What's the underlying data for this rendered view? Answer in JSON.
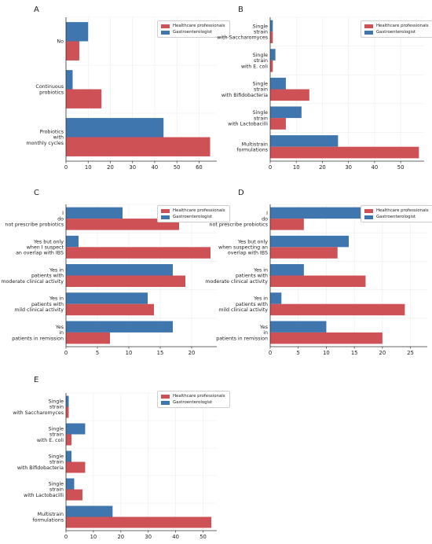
{
  "legend_labels": [
    "Healthcare professionals",
    "Gastroenterologist"
  ],
  "colors": {
    "healthcare": "#cd5155",
    "gastro": "#3f76ad",
    "grid": "#ececec",
    "axis": "#333333"
  },
  "chart_data": [
    {
      "panel": "A",
      "type": "bar",
      "orientation": "horizontal",
      "categories": [
        "No",
        "Continuous probiotics",
        "Probiotics with monthly cycles"
      ],
      "category_labels": [
        [
          "No"
        ],
        [
          "Continuous",
          "probiotics"
        ],
        [
          "Probiotics",
          "with",
          "monthly cycles"
        ]
      ],
      "series": [
        {
          "name": "Healthcare professionals",
          "values": [
            6,
            16,
            65
          ]
        },
        {
          "name": "Gastroenterologist",
          "values": [
            10,
            3,
            44
          ]
        }
      ],
      "xlim": [
        0,
        68
      ],
      "xticks": [
        0,
        10,
        20,
        30,
        40,
        50,
        60
      ],
      "grid": true,
      "legend_position": "top-right"
    },
    {
      "panel": "B",
      "type": "bar",
      "orientation": "horizontal",
      "categories": [
        "Single strain with Saccharomyces",
        "Single strain with E. coli",
        "Single strain with Bifidobacteria",
        "Single strain with Lactobacilli",
        "Multistrain formulations"
      ],
      "category_labels": [
        [
          "Single",
          "strain",
          "with Saccharomyces"
        ],
        [
          "Single",
          "strain",
          "with E. coli"
        ],
        [
          "Single",
          "strain",
          "with Bifidobacteria"
        ],
        [
          "Single",
          "strain",
          "with Lactobacilli"
        ],
        [
          "Multistrain",
          "formulations"
        ]
      ],
      "series": [
        {
          "name": "Healthcare professionals",
          "values": [
            1,
            1,
            15,
            6,
            57
          ]
        },
        {
          "name": "Gastroenterologist",
          "values": [
            1,
            2,
            6,
            12,
            26
          ]
        }
      ],
      "xlim": [
        0,
        59
      ],
      "xticks": [
        0,
        10,
        20,
        30,
        40,
        50
      ],
      "grid": true,
      "legend_position": "top-right"
    },
    {
      "panel": "C",
      "type": "bar",
      "orientation": "horizontal",
      "categories": [
        "I do not prescribe probiotics",
        "Yes but only when I suspect an overlap with IBS",
        "Yes in patients with moderate clinical activity",
        "Yes in patients with mild clinical activity",
        "Yes in patients in remission"
      ],
      "category_labels": [
        [
          "I",
          "do",
          "not prescribe probiotics"
        ],
        [
          "Yes but only",
          "when I suspect",
          "an overlap with IBS"
        ],
        [
          "Yes in",
          "patients with",
          "moderate clinical activity"
        ],
        [
          "Yes in",
          "patients with",
          "mild clinical activity"
        ],
        [
          "Yes",
          "in",
          "patients in remission"
        ]
      ],
      "series": [
        {
          "name": "Healthcare professionals",
          "values": [
            18,
            23,
            19,
            14,
            7
          ]
        },
        {
          "name": "Gastroenterologist",
          "values": [
            9,
            2,
            17,
            13,
            17
          ]
        }
      ],
      "xlim": [
        0,
        24
      ],
      "xticks": [
        0,
        5,
        10,
        15,
        20
      ],
      "grid": true,
      "legend_position": "top-right"
    },
    {
      "panel": "D",
      "type": "bar",
      "orientation": "horizontal",
      "categories": [
        "I do not prescribe probiotics",
        "Yes but only when suspecting an overlap with IBS",
        "Yes in patients with moderate clinical activity",
        "Yes in patients with mild clinical activity",
        "Yes in patients in remission"
      ],
      "category_labels": [
        [
          "I",
          "do",
          "not prescribe probiotics"
        ],
        [
          "Yes but only",
          "when suspecting an",
          "overlap with IBS"
        ],
        [
          "Yes in",
          "patients with",
          "moderate clinical activity"
        ],
        [
          "Yes in",
          "patients with",
          "mild clinical activity"
        ],
        [
          "Yes",
          "in",
          "patients in remission"
        ]
      ],
      "series": [
        {
          "name": "Healthcare professionals",
          "values": [
            6,
            12,
            17,
            24,
            20
          ]
        },
        {
          "name": "Gastroenterologist",
          "values": [
            27,
            14,
            6,
            2,
            10
          ]
        }
      ],
      "xlim": [
        0,
        28
      ],
      "xticks": [
        0,
        5,
        10,
        15,
        20,
        25
      ],
      "grid": true,
      "legend_position": "top-right"
    },
    {
      "panel": "E",
      "type": "bar",
      "orientation": "horizontal",
      "categories": [
        "Single strain with Saccharomyces",
        "Single strain with E. coli",
        "Single strain with Bifidobacteria",
        "Single strain with Lactobacilli",
        "Multistrain formulations"
      ],
      "category_labels": [
        [
          "Single",
          "strain",
          "with Saccharomyces"
        ],
        [
          "Single",
          "strain",
          "with E. coli"
        ],
        [
          "Single",
          "strain",
          "with Bifidobacteria"
        ],
        [
          "Single",
          "strain",
          "with Lactobacilli"
        ],
        [
          "Multistrain",
          "formulations"
        ]
      ],
      "series": [
        {
          "name": "Healthcare professionals",
          "values": [
            1,
            2,
            7,
            6,
            53
          ]
        },
        {
          "name": "Gastroenterologist",
          "values": [
            1,
            7,
            2,
            3,
            17
          ]
        }
      ],
      "xlim": [
        0,
        55
      ],
      "xticks": [
        0,
        10,
        20,
        30,
        40,
        50
      ],
      "grid": true,
      "legend_position": "top-right"
    }
  ]
}
